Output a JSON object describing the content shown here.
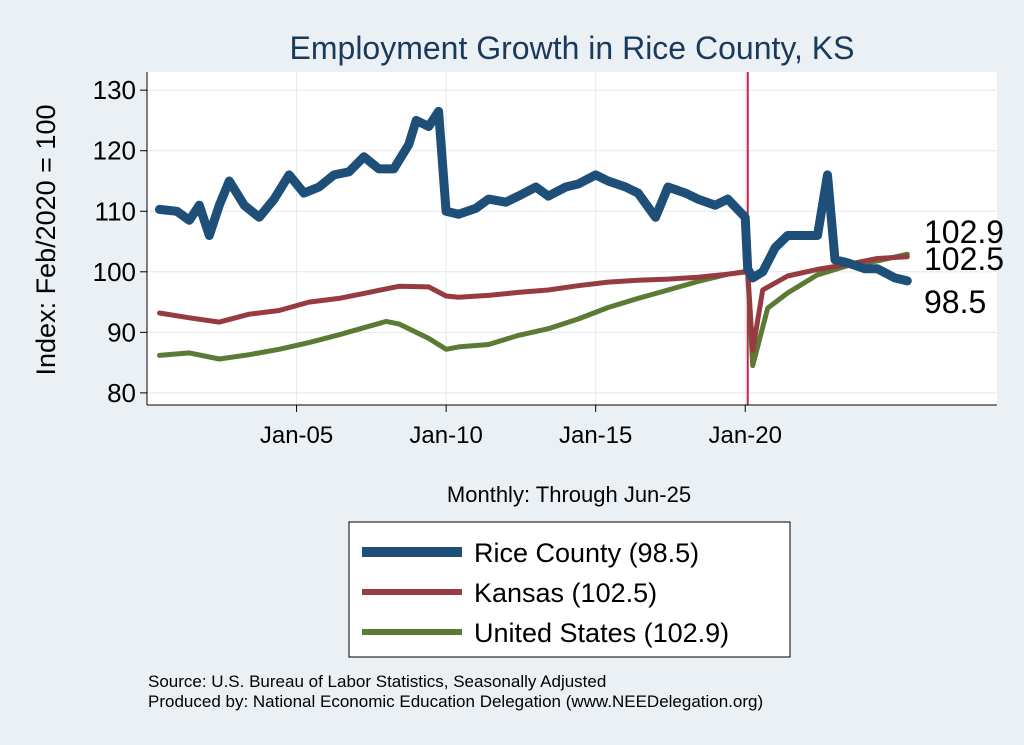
{
  "chart_data": {
    "type": "line",
    "title": "Employment Growth in Rice  County, KS",
    "ylabel": "Index: Feb/2020 = 100",
    "xlabel": "Monthly: Through Jun-25",
    "ylim": [
      78,
      133
    ],
    "xlim": [
      "2000-01",
      "2028-06"
    ],
    "yticks": [
      80,
      90,
      100,
      110,
      120,
      130
    ],
    "xticks": [
      {
        "date": "2005-01",
        "label": "Jan-05"
      },
      {
        "date": "2010-01",
        "label": "Jan-10"
      },
      {
        "date": "2015-01",
        "label": "Jan-15"
      },
      {
        "date": "2020-01",
        "label": "Jan-20"
      }
    ],
    "reference_line": {
      "date": "2020-02",
      "color": "#c0264a"
    },
    "grid": true,
    "legend_position": "bottom",
    "series": [
      {
        "name": "Rice  County (98.5)",
        "color": "#1d4f79",
        "end_label": "98.5",
        "points": [
          [
            "2000-06",
            110.3
          ],
          [
            "2001-01",
            110
          ],
          [
            "2001-06",
            108.5
          ],
          [
            "2001-10",
            111
          ],
          [
            "2002-02",
            106
          ],
          [
            "2002-06",
            111
          ],
          [
            "2002-10",
            115
          ],
          [
            "2003-04",
            111
          ],
          [
            "2003-10",
            109
          ],
          [
            "2004-04",
            112
          ],
          [
            "2004-10",
            116
          ],
          [
            "2005-04",
            113
          ],
          [
            "2005-10",
            114
          ],
          [
            "2006-04",
            116
          ],
          [
            "2006-10",
            116.5
          ],
          [
            "2007-04",
            119
          ],
          [
            "2007-10",
            117
          ],
          [
            "2008-04",
            117
          ],
          [
            "2008-10",
            121
          ],
          [
            "2009-01",
            125
          ],
          [
            "2009-06",
            124
          ],
          [
            "2009-10",
            126.5
          ],
          [
            "2010-01",
            110
          ],
          [
            "2010-06",
            109.5
          ],
          [
            "2011-01",
            110.5
          ],
          [
            "2011-06",
            112
          ],
          [
            "2012-01",
            111.5
          ],
          [
            "2012-06",
            112.5
          ],
          [
            "2013-01",
            114
          ],
          [
            "2013-06",
            112.5
          ],
          [
            "2014-01",
            114
          ],
          [
            "2014-06",
            114.5
          ],
          [
            "2015-01",
            116
          ],
          [
            "2015-06",
            115
          ],
          [
            "2016-01",
            114
          ],
          [
            "2016-06",
            113
          ],
          [
            "2017-01",
            109
          ],
          [
            "2017-06",
            114
          ],
          [
            "2018-01",
            113
          ],
          [
            "2018-06",
            112
          ],
          [
            "2019-01",
            111
          ],
          [
            "2019-06",
            112
          ],
          [
            "2020-01",
            109
          ],
          [
            "2020-02",
            100.5
          ],
          [
            "2020-04",
            99
          ],
          [
            "2020-08",
            100
          ],
          [
            "2021-01",
            104
          ],
          [
            "2021-06",
            106
          ],
          [
            "2022-01",
            106
          ],
          [
            "2022-06",
            106
          ],
          [
            "2022-10",
            116
          ],
          [
            "2023-01",
            102
          ],
          [
            "2023-06",
            101.5
          ],
          [
            "2024-01",
            100.5
          ],
          [
            "2024-06",
            100.5
          ],
          [
            "2025-01",
            99
          ],
          [
            "2025-06",
            98.5
          ]
        ]
      },
      {
        "name": "Kansas (102.5)",
        "color": "#963b3f",
        "end_label": "102.5",
        "points": [
          [
            "2000-06",
            93.2
          ],
          [
            "2001-06",
            92.4
          ],
          [
            "2002-06",
            91.7
          ],
          [
            "2003-06",
            93
          ],
          [
            "2004-06",
            93.6
          ],
          [
            "2005-06",
            95
          ],
          [
            "2006-06",
            95.6
          ],
          [
            "2007-06",
            96.6
          ],
          [
            "2008-06",
            97.6
          ],
          [
            "2009-06",
            97.5
          ],
          [
            "2010-01",
            96
          ],
          [
            "2010-06",
            95.8
          ],
          [
            "2011-06",
            96.1
          ],
          [
            "2012-06",
            96.6
          ],
          [
            "2013-06",
            97
          ],
          [
            "2014-06",
            97.7
          ],
          [
            "2015-06",
            98.3
          ],
          [
            "2016-06",
            98.6
          ],
          [
            "2017-06",
            98.8
          ],
          [
            "2018-06",
            99.1
          ],
          [
            "2019-06",
            99.6
          ],
          [
            "2020-02",
            100.1
          ],
          [
            "2020-04",
            87
          ],
          [
            "2020-08",
            97
          ],
          [
            "2021-06",
            99.3
          ],
          [
            "2022-06",
            100.4
          ],
          [
            "2023-06",
            101.2
          ],
          [
            "2024-06",
            102.2
          ],
          [
            "2025-06",
            102.5
          ]
        ]
      },
      {
        "name": "United States (102.9)",
        "color": "#5b7a34",
        "end_label": "102.9",
        "points": [
          [
            "2000-06",
            86.2
          ],
          [
            "2001-06",
            86.6
          ],
          [
            "2002-06",
            85.6
          ],
          [
            "2003-06",
            86.3
          ],
          [
            "2004-06",
            87.2
          ],
          [
            "2005-06",
            88.3
          ],
          [
            "2006-06",
            89.6
          ],
          [
            "2007-06",
            91
          ],
          [
            "2008-01",
            91.8
          ],
          [
            "2008-06",
            91.4
          ],
          [
            "2009-06",
            89
          ],
          [
            "2010-01",
            87.2
          ],
          [
            "2010-06",
            87.6
          ],
          [
            "2011-06",
            88
          ],
          [
            "2012-06",
            89.5
          ],
          [
            "2013-06",
            90.6
          ],
          [
            "2014-06",
            92.2
          ],
          [
            "2015-06",
            94.1
          ],
          [
            "2016-06",
            95.6
          ],
          [
            "2017-06",
            97
          ],
          [
            "2018-06",
            98.4
          ],
          [
            "2019-06",
            99.6
          ],
          [
            "2020-02",
            100
          ],
          [
            "2020-04",
            84.5
          ],
          [
            "2020-10",
            94
          ],
          [
            "2021-06",
            96.5
          ],
          [
            "2022-06",
            99.5
          ],
          [
            "2023-06",
            101
          ],
          [
            "2024-06",
            101.8
          ],
          [
            "2025-06",
            102.9
          ]
        ]
      }
    ]
  },
  "footer": {
    "source": "Source: U.S. Bureau of Labor Statistics, Seasonally Adjusted",
    "producer": "Produced by: National Economic Education Delegation (www.NEEDelegation.org)"
  }
}
